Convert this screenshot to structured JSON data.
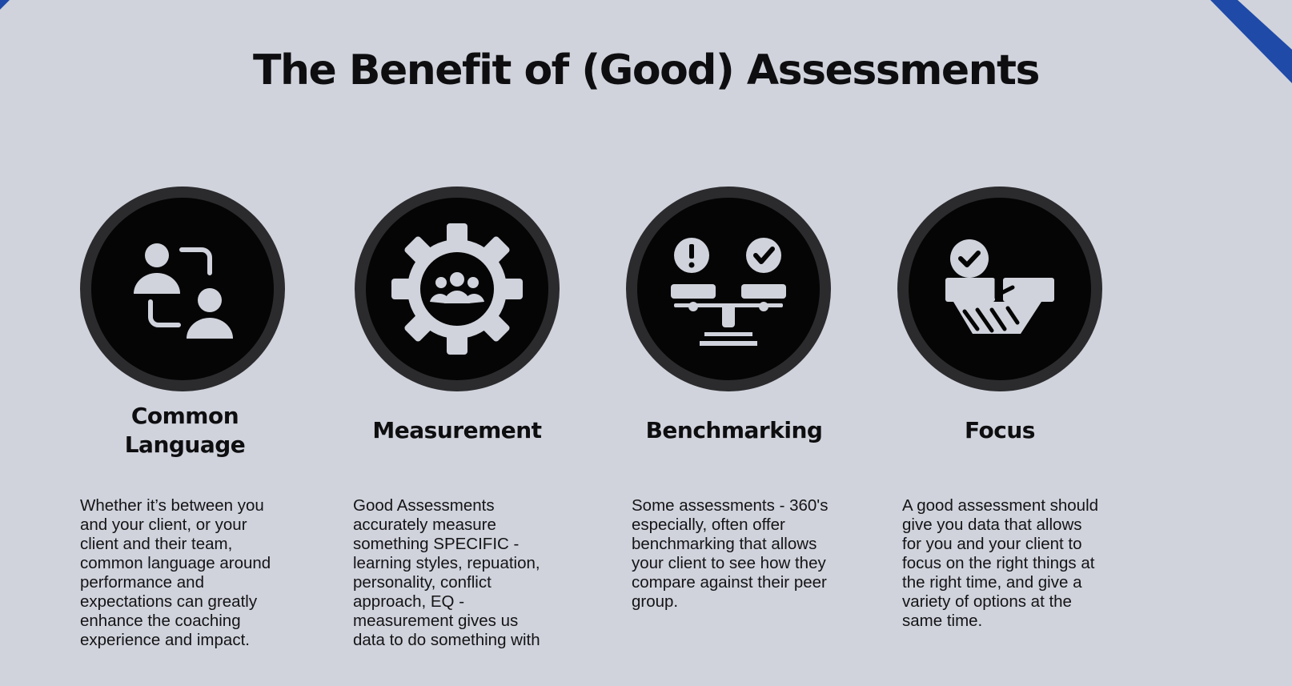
{
  "slide": {
    "title": "The Benefit of (Good) Assessments",
    "accent_color": "#1f4aa8",
    "background_color": "#d0d3dc",
    "cards": [
      {
        "icon": "people-exchange-icon",
        "heading": "Common\nLanguage",
        "description": "Whether it’s between you\nand your client, or your\nclient and their team,\ncommon language around\nperformance and\nexpectations can greatly\nenhance the coaching\nexperience and impact."
      },
      {
        "icon": "gear-team-icon",
        "heading": "Measurement",
        "description": "Good Assessments\naccurately measure\nsomething SPECIFIC -\nlearning styles, repuation,\npersonality, conflict\napproach, EQ -\nmeasurement gives us\ndata to do something with"
      },
      {
        "icon": "balance-scale-icon",
        "heading": "Benchmarking",
        "description": "Some assessments - 360's\nespecially, often offer\nbenchmarking that allows\nyour client to see how they\ncompare against their peer\ngroup."
      },
      {
        "icon": "handshake-check-icon",
        "heading": "Focus",
        "description": "A good assessment should\ngive you data that allows\nfor you and your client to\nfocus on the right things at\nthe right time, and give a\nvariety of options at the\nsame time."
      }
    ]
  }
}
